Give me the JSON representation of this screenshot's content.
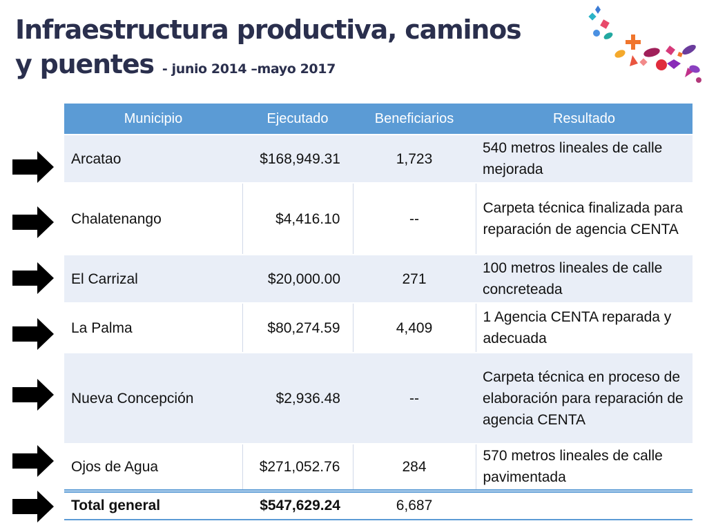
{
  "title": {
    "line1": "Infraestructura productiva, caminos",
    "line2": "y puentes",
    "subtitle": "- junio 2014 –mayo 2017"
  },
  "table": {
    "headers": [
      "Municipio",
      "Ejecutado",
      "Beneficiarios",
      "Resultado"
    ],
    "rows": [
      {
        "municipio": "Arcatao",
        "ejecutado": "$168,949.31",
        "beneficiarios": "1,723",
        "resultado": "540 metros lineales de calle mejorada"
      },
      {
        "municipio": "Chalatenango",
        "ejecutado": "$4,416.10",
        "beneficiarios": "--",
        "resultado": "Carpeta técnica finalizada para reparación de agencia CENTA"
      },
      {
        "municipio": "El Carrizal",
        "ejecutado": "$20,000.00",
        "beneficiarios": "271",
        "resultado": "100 metros lineales de calle concreteada"
      },
      {
        "municipio": "La Palma",
        "ejecutado": "$80,274.59",
        "beneficiarios": "4,409",
        "resultado": "1 Agencia CENTA reparada y adecuada"
      },
      {
        "municipio": "Nueva Concepción",
        "ejecutado": "$2,936.48",
        "beneficiarios": "--",
        "resultado": "Carpeta técnica en proceso de elaboración para reparación de agencia CENTA"
      },
      {
        "municipio": "Ojos de Agua",
        "ejecutado": "$271,052.76",
        "beneficiarios": "284",
        "resultado": "570 metros lineales de calle pavimentada"
      }
    ],
    "total": {
      "municipio": "Total general",
      "ejecutado": "$547,629.24",
      "beneficiarios": "6,687",
      "resultado": ""
    }
  },
  "icons": {
    "arrow": "right-arrow-icon",
    "confetti": "confetti-decoration"
  },
  "colors": {
    "header": "#5b9bd5",
    "row_band": "#e9eef7",
    "title": "#2a2f4d"
  }
}
